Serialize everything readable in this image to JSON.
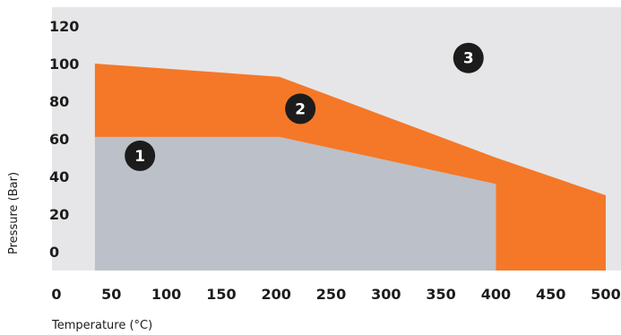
{
  "chart_data": {
    "type": "area",
    "xlabel": "Temperature (°C)",
    "ylabel": "Pressure (Bar)",
    "xlim": [
      0,
      500
    ],
    "ylim": [
      -10,
      130
    ],
    "x_ticks": [
      0,
      50,
      100,
      150,
      200,
      250,
      300,
      350,
      400,
      450,
      500
    ],
    "y_ticks": [
      0,
      20,
      40,
      60,
      80,
      100,
      120
    ],
    "colors": {
      "background": "#e6e6e8",
      "region_1": "#bcc0c8",
      "region_2": "#f47828",
      "marker": "#1c1c1c"
    },
    "regions": [
      {
        "points": [
          [
            35,
            -10
          ],
          [
            35,
            61
          ],
          [
            203,
            61
          ],
          [
            400,
            36
          ],
          [
            400,
            -10
          ]
        ]
      },
      {
        "points": [
          [
            35,
            -10
          ],
          [
            35,
            100
          ],
          [
            203,
            93
          ],
          [
            400,
            50
          ],
          [
            500,
            30
          ],
          [
            500,
            -10
          ],
          [
            400,
            -10
          ],
          [
            400,
            36
          ],
          [
            203,
            61
          ],
          [
            35,
            61
          ]
        ]
      }
    ],
    "markers": [
      {
        "label": "1",
        "x": 76,
        "y": 51
      },
      {
        "label": "2",
        "x": 222,
        "y": 76
      },
      {
        "label": "3",
        "x": 375,
        "y": 103
      }
    ]
  }
}
